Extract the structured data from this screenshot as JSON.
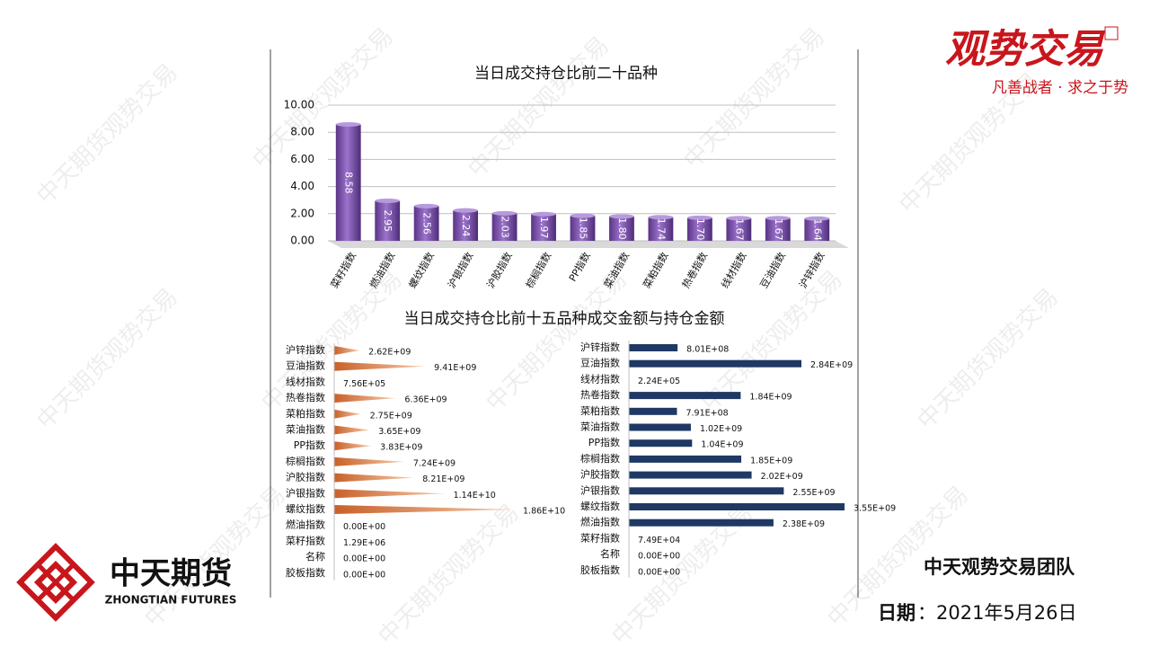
{
  "chart_data": [
    {
      "type": "bar",
      "title": "当日成交持仓比前二十品种",
      "categories": [
        "菜籽指数",
        "燃油指数",
        "螺纹指数",
        "沪银指数",
        "沪胶指数",
        "棕榈指数",
        "PP指数",
        "菜油指数",
        "菜粕指数",
        "热卷指数",
        "线材指数",
        "豆油指数",
        "沪锌指数"
      ],
      "values": [
        8.58,
        2.95,
        2.56,
        2.24,
        2.03,
        1.97,
        1.85,
        1.8,
        1.74,
        1.7,
        1.67,
        1.67,
        1.64
      ],
      "value_labels": [
        "8.58",
        "2.95",
        "2.56",
        "2.24",
        "2.03",
        "1.97",
        "1.85",
        "1.80",
        "1.74",
        "1.70",
        "1.67",
        "1.67",
        "1.64"
      ],
      "color": "#7a4fa8",
      "ylim": [
        0,
        10
      ],
      "yticks": [
        {
          "value": 0,
          "label": "0.00"
        },
        {
          "value": 2,
          "label": "2.00"
        },
        {
          "value": 4,
          "label": "4.00"
        },
        {
          "value": 6,
          "label": "6.00"
        },
        {
          "value": 8,
          "label": "8.00"
        },
        {
          "value": 10,
          "label": "10.00"
        }
      ],
      "grid": true
    },
    {
      "type": "barh",
      "title": "当日成交持仓比前十五品种成交金额与持仓金额",
      "categories": [
        "沪锌指数",
        "豆油指数",
        "线材指数",
        "热卷指数",
        "菜粕指数",
        "菜油指数",
        "PP指数",
        "棕榈指数",
        "沪胶指数",
        "沪银指数",
        "螺纹指数",
        "燃油指数",
        "菜籽指数",
        "名称",
        "胶板指数"
      ],
      "values": [
        2620000000,
        9410000000,
        756000,
        6360000000,
        2750000000,
        3650000000,
        3830000000,
        7240000000,
        8210000000,
        11400000000,
        18600000000,
        0,
        1290000,
        0,
        0
      ],
      "value_labels": [
        "2.62E+09",
        "9.41E+09",
        "7.56E+05",
        "6.36E+09",
        "2.75E+09",
        "3.65E+09",
        "3.83E+09",
        "7.24E+09",
        "8.21E+09",
        "1.14E+10",
        "1.86E+10",
        "0.00E+00",
        "1.29E+06",
        "0.00E+00",
        "0.00E+00"
      ],
      "color": "#e07b39"
    },
    {
      "type": "barh",
      "categories": [
        "沪锌指数",
        "豆油指数",
        "线材指数",
        "热卷指数",
        "菜粕指数",
        "菜油指数",
        "PP指数",
        "棕榈指数",
        "沪胶指数",
        "沪银指数",
        "螺纹指数",
        "燃油指数",
        "菜籽指数",
        "名称",
        "胶板指数"
      ],
      "values": [
        801000000,
        2840000000,
        224000,
        1840000000,
        791000000,
        1020000000,
        1040000000,
        1850000000,
        2020000000,
        2550000000,
        3550000000,
        2380000000,
        74900,
        0,
        0
      ],
      "value_labels": [
        "8.01E+08",
        "2.84E+09",
        "2.24E+05",
        "1.84E+09",
        "7.91E+08",
        "1.02E+09",
        "1.04E+09",
        "1.85E+09",
        "2.02E+09",
        "2.55E+09",
        "3.55E+09",
        "2.38E+09",
        "7.49E+04",
        "0.00E+00",
        "0.00E+00"
      ],
      "color": "#1f3864"
    }
  ],
  "logo": {
    "name": "观势交易",
    "slogan": "凡善战者 · 求之于势"
  },
  "company": {
    "name": "中天期货",
    "name_en": "ZHONGTIAN FUTURES"
  },
  "footer": {
    "team": "中天观势交易团队",
    "date_label": "日期",
    "date": "：2021年5月26日"
  },
  "watermark": "中天期货观势交易"
}
